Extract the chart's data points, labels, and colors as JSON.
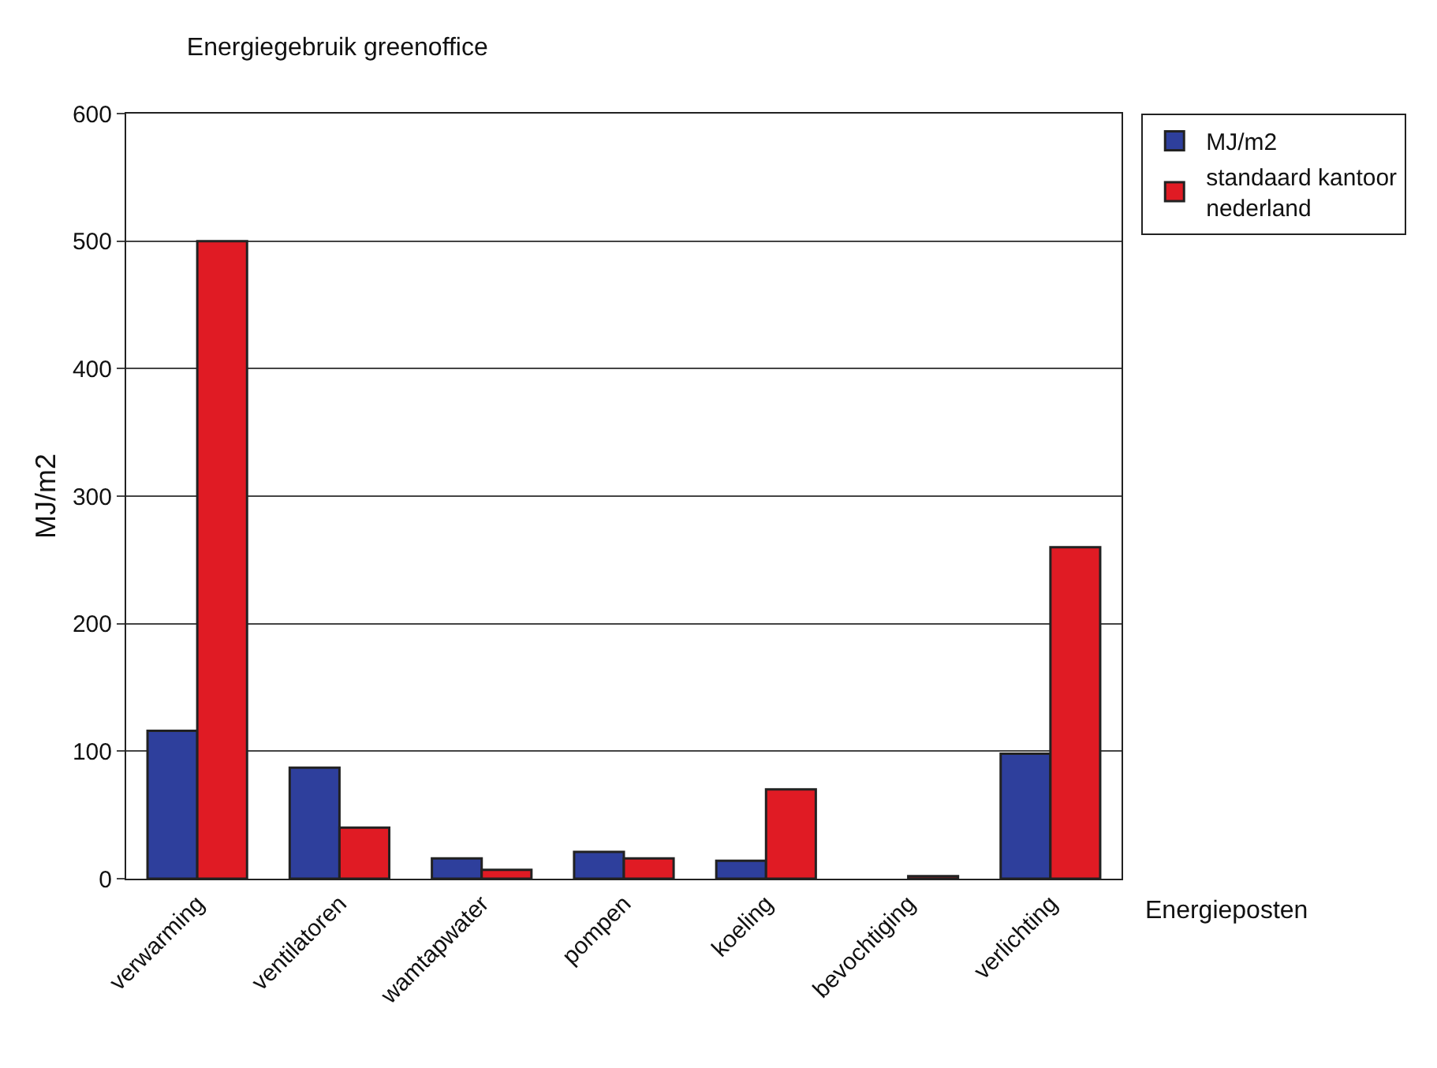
{
  "chart_data": {
    "type": "bar",
    "title": "Energiegebruik greenoffice",
    "xlabel": "Energieposten",
    "ylabel": "MJ/m2",
    "categories": [
      "verwarming",
      "ventilatoren",
      "wamtapwater",
      "pompen",
      "koeling",
      "bevochtiging",
      "verlichting"
    ],
    "series": [
      {
        "name": "MJ/m2",
        "color": "#2e3f9c",
        "values": [
          116,
          87,
          16,
          21,
          14,
          null,
          98
        ]
      },
      {
        "name": "standaard kantoor\nnederland",
        "color": "#e01b24",
        "values": [
          500,
          40,
          7,
          16,
          70,
          2,
          260
        ]
      }
    ],
    "ylim": [
      0,
      600
    ],
    "yticks": [
      0,
      100,
      200,
      300,
      400,
      500,
      600
    ],
    "grid": "y",
    "legend": "top right"
  }
}
